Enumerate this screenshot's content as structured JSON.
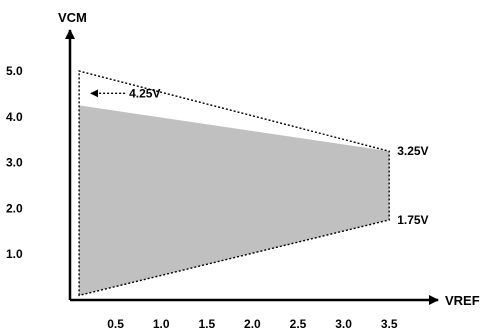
{
  "chart_data": {
    "type": "area",
    "title": "",
    "xlabel": "VREF",
    "ylabel": "VCM",
    "xlim": [
      0,
      3.75
    ],
    "ylim": [
      0,
      5.5
    ],
    "x_ticks": [
      "0.5",
      "1.0",
      "1.5",
      "2.0",
      "2.5",
      "3.0",
      "3.5"
    ],
    "x_tick_values": [
      0.5,
      1.0,
      1.5,
      2.0,
      2.5,
      3.0,
      3.5
    ],
    "y_ticks": [
      "1.0",
      "2.0",
      "3.0",
      "4.0",
      "5.0"
    ],
    "y_tick_values": [
      1.0,
      2.0,
      3.0,
      4.0,
      5.0
    ],
    "grid": false,
    "region": {
      "fill_color": "#c0c0c0",
      "points": [
        [
          0.1,
          0.1
        ],
        [
          0.1,
          4.25
        ],
        [
          3.5,
          3.25
        ],
        [
          3.5,
          1.75
        ]
      ]
    },
    "outline": {
      "style": "dotted",
      "points": [
        [
          0.1,
          0.1
        ],
        [
          0.1,
          5.0
        ],
        [
          3.5,
          3.25
        ],
        [
          3.5,
          1.75
        ]
      ]
    },
    "annotations": [
      {
        "id": "ann-425",
        "text": "4.25V",
        "x": 0.1,
        "y": 4.25,
        "arrow": true
      },
      {
        "id": "ann-325",
        "text": "3.25V",
        "x": 3.5,
        "y": 3.25,
        "arrow": false
      },
      {
        "id": "ann-175",
        "text": "1.75V",
        "x": 3.5,
        "y": 1.75,
        "arrow": false
      }
    ]
  }
}
